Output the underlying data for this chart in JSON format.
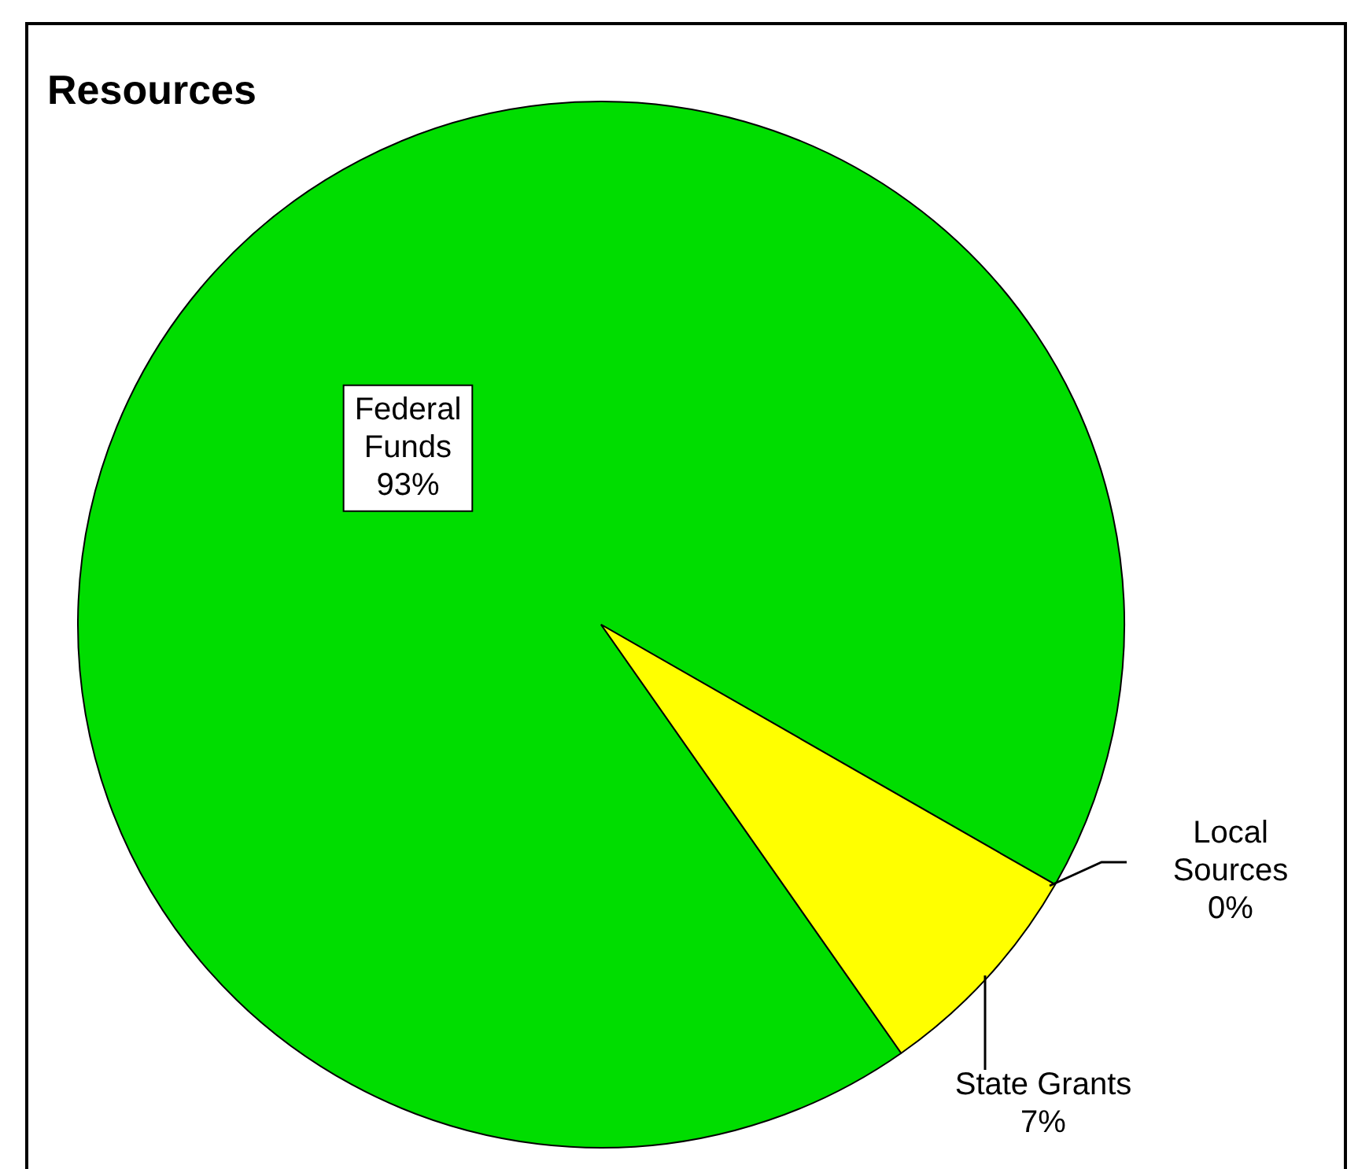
{
  "chart_data": {
    "type": "pie",
    "title": "Resources",
    "categories": [
      "Federal Funds",
      "Local Sources",
      "State Grants"
    ],
    "values": [
      93,
      0,
      7
    ],
    "colors": [
      "#00dd00",
      "#333399",
      "#ffff00"
    ],
    "value_labels": [
      "93%",
      "0%",
      "7%"
    ]
  }
}
